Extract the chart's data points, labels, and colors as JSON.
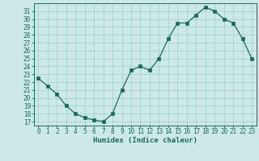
{
  "x": [
    0,
    1,
    2,
    3,
    4,
    5,
    6,
    7,
    8,
    9,
    10,
    11,
    12,
    13,
    14,
    15,
    16,
    17,
    18,
    19,
    20,
    21,
    22,
    23
  ],
  "y": [
    22.5,
    21.5,
    20.5,
    19.0,
    18.0,
    17.5,
    17.2,
    17.0,
    18.0,
    21.0,
    23.5,
    24.0,
    23.5,
    25.0,
    27.5,
    29.5,
    29.5,
    30.5,
    31.5,
    31.0,
    30.0,
    29.5,
    27.5,
    25.0
  ],
  "xlabel": "Humidex (Indice chaleur)",
  "xlim": [
    -0.5,
    23.5
  ],
  "ylim": [
    16.5,
    32.0
  ],
  "yticks": [
    17,
    18,
    19,
    20,
    21,
    22,
    23,
    24,
    25,
    26,
    27,
    28,
    29,
    30,
    31
  ],
  "xticks": [
    0,
    1,
    2,
    3,
    4,
    5,
    6,
    7,
    8,
    9,
    10,
    11,
    12,
    13,
    14,
    15,
    16,
    17,
    18,
    19,
    20,
    21,
    22,
    23
  ],
  "line_color": "#1a6b5a",
  "marker_color": "#1a6b5a",
  "bg_color": "#cce9e7",
  "grid_color": "#9fcfcb",
  "tick_label_color": "#1a6b5a",
  "xlabel_color": "#1a6b5a"
}
